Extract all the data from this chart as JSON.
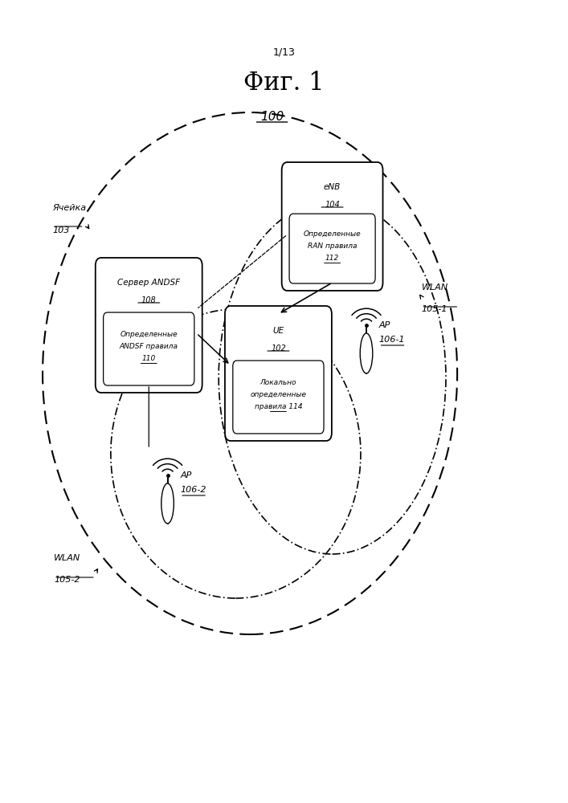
{
  "page_label": "1/13",
  "title": "Фиг. 1",
  "system_label": "100",
  "background_color": "#ffffff",
  "cell_label_line1": "Ячейка",
  "cell_label_line2": "103",
  "enb_line1": "eNB",
  "enb_line2": "104",
  "enb_line3": "Определенные",
  "enb_line4": "RAN правила",
  "enb_line5": "112",
  "andsf_line1": "Сервер ANDSF",
  "andsf_line2": "108",
  "andsf_line3": "Определенные",
  "andsf_line4": "ANDSF правила",
  "andsf_line5": "110",
  "ue_line1": "UE",
  "ue_line2": "102",
  "ue_line3": "Локально",
  "ue_line4": "определенные",
  "ue_line5": "правила 114",
  "wlan1_line1": "WLAN",
  "wlan1_line2": "105-1",
  "wlan2_line1": "WLAN",
  "wlan2_line2": "105-2",
  "ap1_line1": "AP",
  "ap1_line2": "106-1",
  "ap2_line1": "AP",
  "ap2_line2": "106-2"
}
